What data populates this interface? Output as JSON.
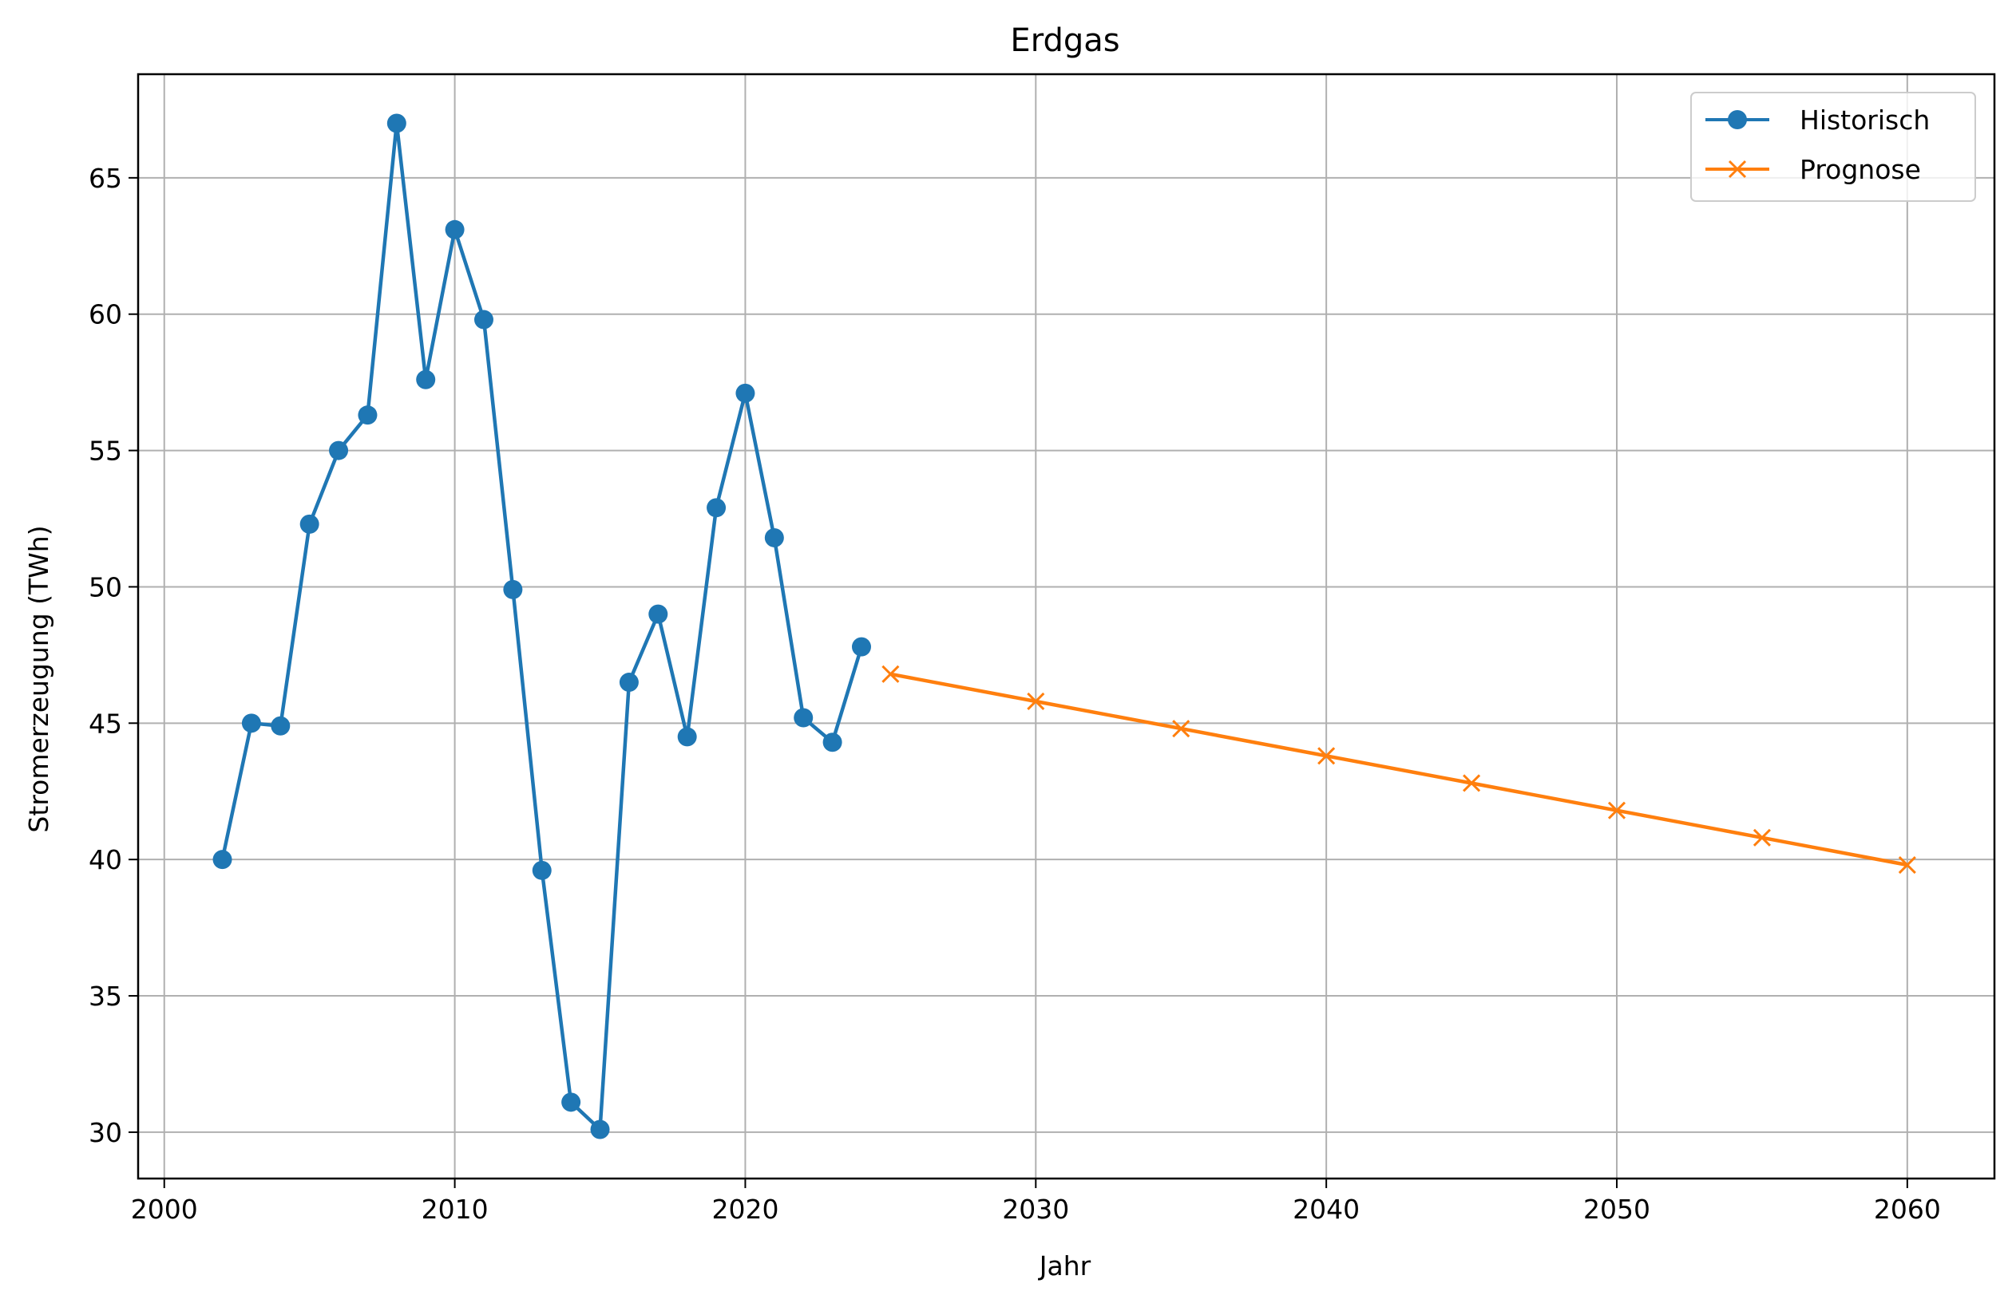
{
  "chart_data": {
    "type": "line",
    "title": "Erdgas",
    "xlabel": "Jahr",
    "ylabel": "Stromerzeugung (TWh)",
    "xlim": [
      1999.1,
      2063.0
    ],
    "ylim": [
      28.3,
      68.8
    ],
    "xticks": [
      2000,
      2010,
      2020,
      2030,
      2040,
      2050,
      2060
    ],
    "yticks": [
      30,
      35,
      40,
      45,
      50,
      55,
      60,
      65
    ],
    "grid": true,
    "legend_position": "top-right",
    "series": [
      {
        "name": "Historisch",
        "color": "#1f77b4",
        "marker": "circle",
        "x": [
          2002,
          2003,
          2004,
          2005,
          2006,
          2007,
          2008,
          2009,
          2010,
          2011,
          2012,
          2013,
          2014,
          2015,
          2016,
          2017,
          2018,
          2019,
          2020,
          2021,
          2022,
          2023,
          2024
        ],
        "y": [
          40.0,
          45.0,
          44.9,
          52.3,
          55.0,
          56.3,
          67.0,
          57.6,
          63.1,
          59.8,
          49.9,
          39.6,
          31.1,
          30.1,
          46.5,
          49.0,
          44.5,
          52.9,
          57.1,
          51.8,
          45.2,
          44.3,
          47.8
        ]
      },
      {
        "name": "Prognose",
        "color": "#ff7f0e",
        "marker": "x",
        "x": [
          2025,
          2030,
          2035,
          2040,
          2045,
          2050,
          2055,
          2060
        ],
        "y": [
          46.8,
          45.8,
          44.8,
          43.8,
          42.8,
          41.8,
          40.8,
          39.8
        ]
      }
    ]
  }
}
